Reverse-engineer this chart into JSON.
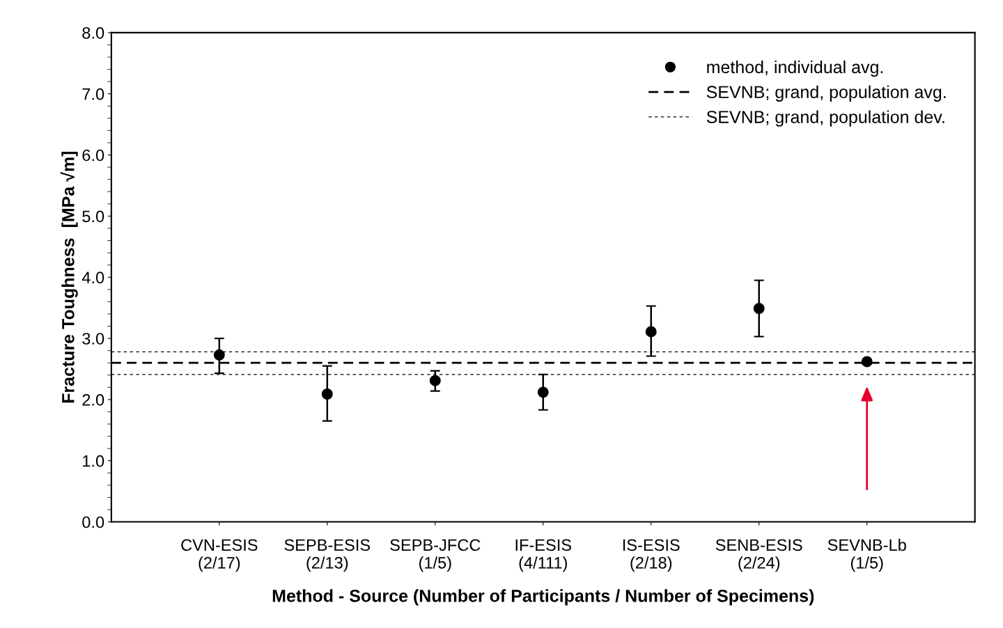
{
  "chart_data": {
    "type": "scatter",
    "xlabel": "Method - Source (Number of Participants / Number of Specimens)",
    "ylabel": "Fracture Toughness  [MPa √m]",
    "categories": [
      "CVN-ESIS\n(2/17)",
      "SEPB-ESIS\n(2/13)",
      "SEPB-JFCC\n(1/5)",
      "IF-ESIS\n(4/111)",
      "IS-ESIS\n(2/18)",
      "SENB-ESIS\n(2/24)",
      "SEVNB-Lb\n(1/5)"
    ],
    "series": [
      {
        "name": "method, individual avg.",
        "color": "#000000",
        "values": [
          2.73,
          2.09,
          2.31,
          2.12,
          3.11,
          3.49,
          2.62
        ],
        "errors": [
          [
            2.43,
            3.0
          ],
          [
            1.65,
            2.55
          ],
          [
            2.14,
            2.47
          ],
          [
            1.83,
            2.41
          ],
          [
            2.71,
            3.53
          ],
          [
            3.03,
            3.95
          ],
          null
        ]
      }
    ],
    "ref_lines": [
      {
        "axis": "y",
        "value": 2.6,
        "label": "SEVNB; grand, population avg.",
        "color": "#000000",
        "line_style": "dashed"
      },
      {
        "axis": "y",
        "value": 2.78,
        "label": "SEVNB; grand, population dev.",
        "color": "#000000",
        "line_style": "dotted"
      },
      {
        "axis": "y",
        "value": 2.41,
        "label": null,
        "color": "#000000",
        "line_style": "dotted"
      }
    ],
    "ylim": [
      0,
      8
    ],
    "yticks": [
      {
        "value": 0,
        "label": "0.0"
      },
      {
        "value": 1,
        "label": "1.0"
      },
      {
        "value": 2,
        "label": "2.0"
      },
      {
        "value": 3,
        "label": "3.0"
      },
      {
        "value": 4,
        "label": "4.0"
      },
      {
        "value": 5,
        "label": "5.0"
      },
      {
        "value": 6,
        "label": "6.0"
      },
      {
        "value": 7,
        "label": "7.0"
      },
      {
        "value": 8,
        "label": "8.0"
      }
    ],
    "marker": "circle",
    "grid": false,
    "legend": "top right"
  }
}
